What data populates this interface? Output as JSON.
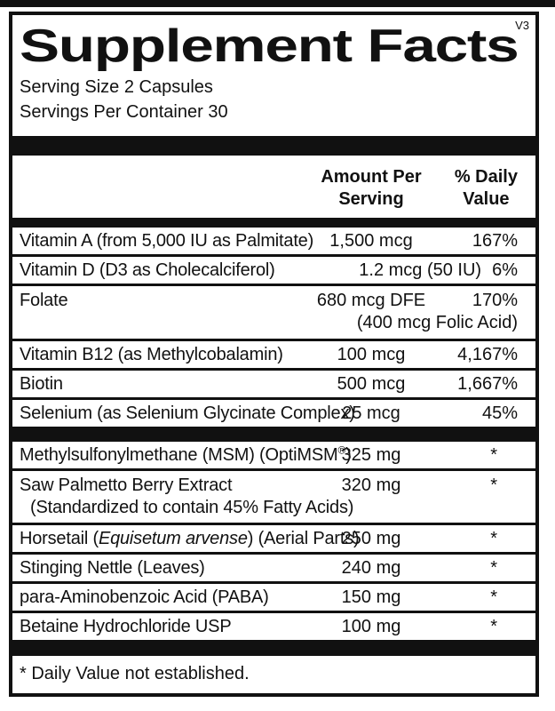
{
  "colors": {
    "ink": "#111111",
    "paper": "#ffffff"
  },
  "label": {
    "title": "Supplement Facts",
    "version": "V3",
    "serving_size": "Serving Size 2 Capsules",
    "servings_per_container": "Servings Per Container 30",
    "footnote": "* Daily Value not established."
  },
  "table": {
    "headers": {
      "amount_line1": "Amount Per",
      "amount_line2": "Serving",
      "dv_line1": "% Daily",
      "dv_line2": "Value"
    },
    "rows": [
      {
        "name": "Vitamin A (from 5,000 IU as Palmitate)",
        "amount": "1,500 mcg",
        "dv": "167%"
      },
      {
        "name": "Vitamin D (D3 as Cholecalciferol)",
        "amount": "1.2 mcg (50 IU)",
        "dv": "6%"
      },
      {
        "name": "Folate",
        "amount": "680 mcg DFE",
        "dv": "170%",
        "amount_note": "(400 mcg Folic Acid)"
      },
      {
        "name": "Vitamin B12 (as Methylcobalamin)",
        "amount": "100 mcg",
        "dv": "4,167%"
      },
      {
        "name": "Biotin",
        "amount": "500 mcg",
        "dv": "1,667%"
      },
      {
        "name": "Selenium (as Selenium Glycinate Complex)",
        "amount": "25 mcg",
        "dv": "45%"
      },
      {
        "name": "Methylsulfonylmethane (MSM) (OptiMSM",
        "name_sup": "®",
        "name_post": ")",
        "amount": "325 mg",
        "dv": "*"
      },
      {
        "name": "Saw Palmetto Berry Extract",
        "name_note": "(Standardized to contain 45% Fatty Acids)",
        "amount": "320 mg",
        "dv": "*"
      },
      {
        "name": "Horsetail (",
        "name_italic": "Equisetum arvense",
        "name_post": ") (Aerial Parts)",
        "amount": "250 mg",
        "dv": "*"
      },
      {
        "name": "Stinging Nettle (Leaves)",
        "amount": "240 mg",
        "dv": "*"
      },
      {
        "name": "para-Aminobenzoic Acid (PABA)",
        "amount": "150 mg",
        "dv": "*"
      },
      {
        "name": "Betaine Hydrochloride USP",
        "amount": "100 mg",
        "dv": "*"
      }
    ]
  }
}
